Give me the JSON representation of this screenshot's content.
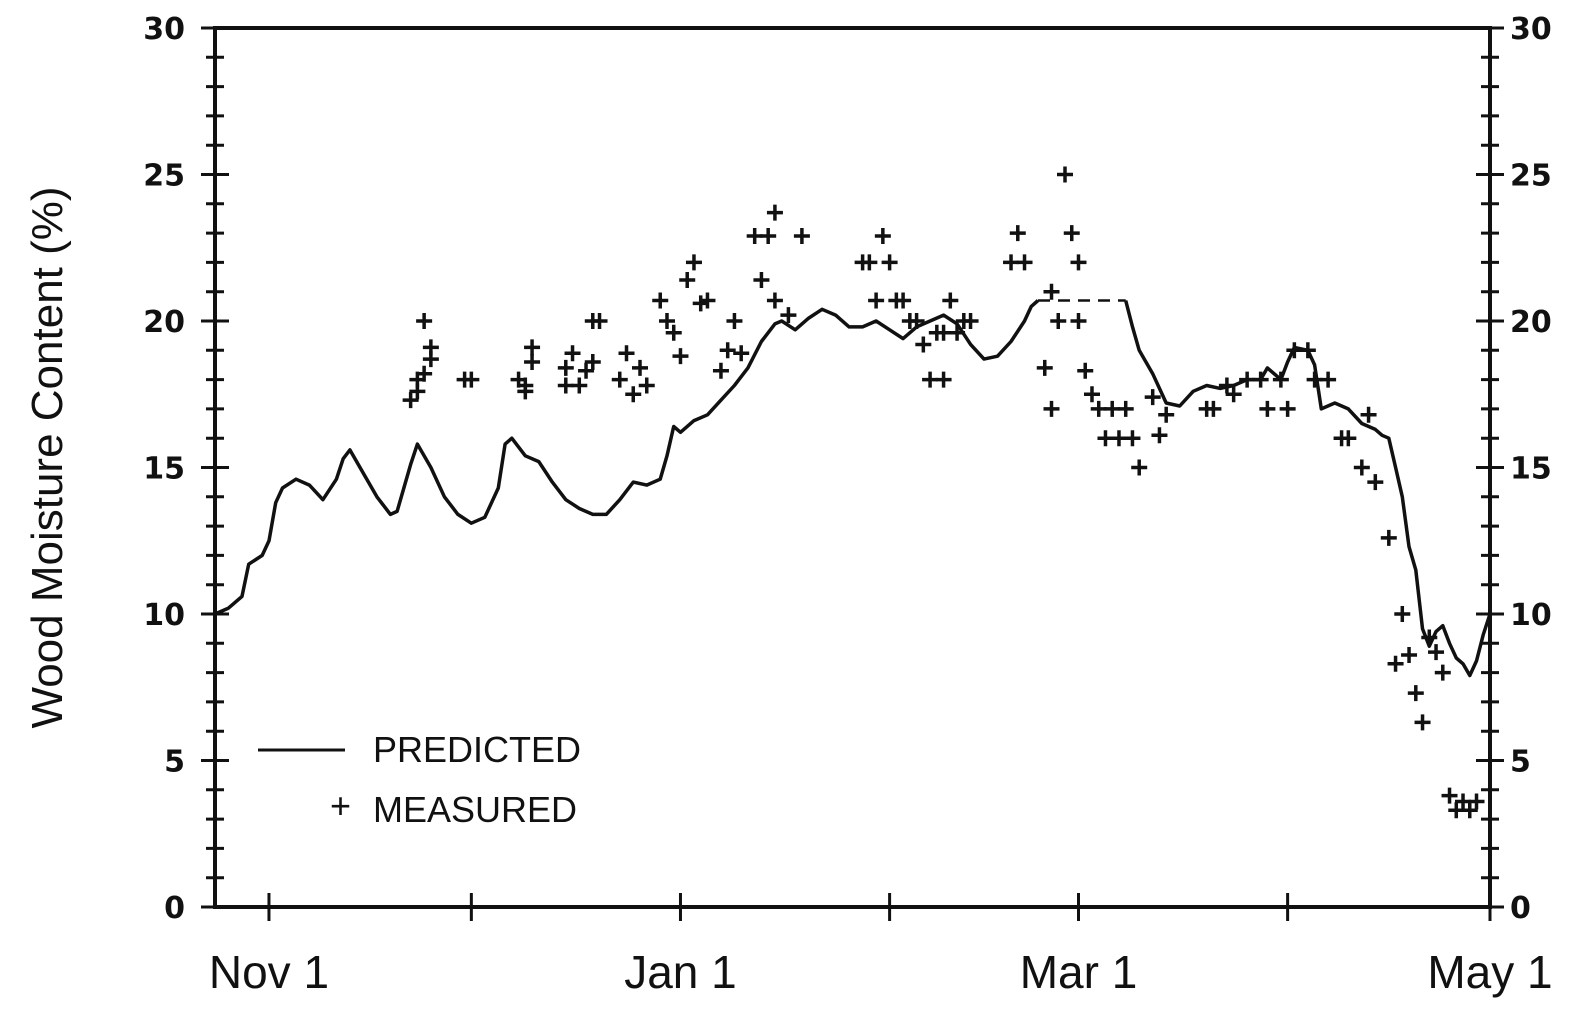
{
  "chart_data": {
    "type": "line",
    "title": "",
    "xlabel": "",
    "ylabel": "Wood Moisture Content (%)",
    "ylim": [
      0,
      30
    ],
    "y_ticks": [
      0,
      5,
      10,
      15,
      20,
      25,
      30
    ],
    "x_tick_labels": [
      "Nov 1",
      "Jan 1",
      "Mar 1",
      "May 1"
    ],
    "x_tick_days": [
      0,
      61,
      120,
      181
    ],
    "xlim_days": [
      -8,
      181
    ],
    "x_unit_note": "",
    "grid": false,
    "legend_position": "bottom-left",
    "legend": {
      "predicted_label": "PREDICTED",
      "measured_label": "MEASURED"
    },
    "series": [
      {
        "name": "PREDICTED",
        "style": "solid-line",
        "points": [
          [
            -8,
            10.0
          ],
          [
            -6,
            10.2
          ],
          [
            -4,
            10.6
          ],
          [
            -3,
            11.7
          ],
          [
            -1,
            12.0
          ],
          [
            0,
            12.5
          ],
          [
            1,
            13.8
          ],
          [
            2,
            14.3
          ],
          [
            4,
            14.6
          ],
          [
            6,
            14.4
          ],
          [
            8,
            13.9
          ],
          [
            10,
            14.6
          ],
          [
            11,
            15.3
          ],
          [
            12,
            15.6
          ],
          [
            14,
            14.8
          ],
          [
            16,
            14.0
          ],
          [
            18,
            13.4
          ],
          [
            19,
            13.5
          ],
          [
            21,
            15.1
          ],
          [
            22,
            15.8
          ],
          [
            24,
            15.0
          ],
          [
            26,
            14.0
          ],
          [
            28,
            13.4
          ],
          [
            30,
            13.1
          ],
          [
            32,
            13.3
          ],
          [
            34,
            14.3
          ],
          [
            35,
            15.8
          ],
          [
            36,
            16.0
          ],
          [
            38,
            15.4
          ],
          [
            40,
            15.2
          ],
          [
            42,
            14.5
          ],
          [
            44,
            13.9
          ],
          [
            46,
            13.6
          ],
          [
            48,
            13.4
          ],
          [
            50,
            13.4
          ],
          [
            52,
            13.9
          ],
          [
            54,
            14.5
          ],
          [
            56,
            14.4
          ],
          [
            58,
            14.6
          ],
          [
            59,
            15.4
          ],
          [
            60,
            16.4
          ],
          [
            61,
            16.2
          ],
          [
            63,
            16.6
          ],
          [
            65,
            16.8
          ],
          [
            67,
            17.3
          ],
          [
            69,
            17.8
          ],
          [
            71,
            18.4
          ],
          [
            73,
            19.3
          ],
          [
            75,
            19.9
          ],
          [
            76,
            20.0
          ],
          [
            78,
            19.7
          ],
          [
            80,
            20.1
          ],
          [
            82,
            20.4
          ],
          [
            84,
            20.2
          ],
          [
            86,
            19.8
          ],
          [
            88,
            19.8
          ],
          [
            90,
            20.0
          ],
          [
            92,
            19.7
          ],
          [
            94,
            19.4
          ],
          [
            96,
            19.8
          ],
          [
            98,
            20.0
          ],
          [
            100,
            20.2
          ],
          [
            102,
            19.9
          ],
          [
            104,
            19.2
          ],
          [
            106,
            18.7
          ],
          [
            108,
            18.8
          ],
          [
            110,
            19.3
          ],
          [
            112,
            20.0
          ],
          [
            113,
            20.5
          ],
          [
            114,
            20.7
          ]
        ]
      },
      {
        "name": "",
        "style": "dashed-line",
        "points": [
          [
            114,
            20.7
          ],
          [
            127,
            20.7
          ]
        ]
      },
      {
        "name": "",
        "style": "solid-line",
        "points": [
          [
            127,
            20.7
          ],
          [
            128,
            19.8
          ],
          [
            129,
            19.0
          ],
          [
            131,
            18.2
          ],
          [
            133,
            17.2
          ],
          [
            135,
            17.1
          ],
          [
            137,
            17.6
          ],
          [
            139,
            17.8
          ],
          [
            141,
            17.7
          ],
          [
            143,
            17.8
          ],
          [
            145,
            18.0
          ],
          [
            147,
            18.0
          ],
          [
            148,
            18.4
          ],
          [
            150,
            18.0
          ],
          [
            151,
            18.6
          ],
          [
            152,
            19.1
          ],
          [
            154,
            19.0
          ],
          [
            155,
            18.5
          ],
          [
            156,
            17.0
          ],
          [
            158,
            17.2
          ],
          [
            160,
            17.0
          ],
          [
            162,
            16.5
          ],
          [
            164,
            16.3
          ],
          [
            165,
            16.1
          ],
          [
            166,
            16.0
          ],
          [
            167,
            15.0
          ],
          [
            168,
            14.0
          ],
          [
            169,
            12.3
          ],
          [
            170,
            11.5
          ],
          [
            171,
            9.5
          ],
          [
            172,
            8.9
          ],
          [
            173,
            9.4
          ],
          [
            174,
            9.6
          ],
          [
            175,
            9.0
          ],
          [
            176,
            8.5
          ],
          [
            177,
            8.3
          ],
          [
            178,
            7.9
          ],
          [
            179,
            8.4
          ],
          [
            180,
            9.3
          ],
          [
            181,
            10.0
          ]
        ]
      },
      {
        "name": "MEASURED",
        "style": "plus-markers",
        "points": [
          [
            21,
            17.3
          ],
          [
            22,
            17.6
          ],
          [
            22,
            18.0
          ],
          [
            23,
            18.2
          ],
          [
            23,
            20.0
          ],
          [
            24,
            18.7
          ],
          [
            24,
            19.1
          ],
          [
            29,
            18.0
          ],
          [
            30,
            18.0
          ],
          [
            37,
            18.0
          ],
          [
            38,
            17.8
          ],
          [
            38,
            17.6
          ],
          [
            39,
            18.6
          ],
          [
            39,
            19.1
          ],
          [
            44,
            18.4
          ],
          [
            44,
            17.8
          ],
          [
            45,
            18.9
          ],
          [
            46,
            17.8
          ],
          [
            47,
            18.3
          ],
          [
            48,
            18.6
          ],
          [
            48,
            20.0
          ],
          [
            49,
            20.0
          ],
          [
            52,
            18.0
          ],
          [
            53,
            18.9
          ],
          [
            54,
            17.5
          ],
          [
            55,
            18.4
          ],
          [
            56,
            17.8
          ],
          [
            58,
            20.7
          ],
          [
            59,
            20.0
          ],
          [
            60,
            19.6
          ],
          [
            61,
            18.8
          ],
          [
            62,
            21.4
          ],
          [
            63,
            22.0
          ],
          [
            64,
            20.6
          ],
          [
            65,
            20.7
          ],
          [
            67,
            18.3
          ],
          [
            68,
            19.0
          ],
          [
            69,
            20.0
          ],
          [
            70,
            18.9
          ],
          [
            72,
            22.9
          ],
          [
            73,
            21.4
          ],
          [
            74,
            22.9
          ],
          [
            75,
            23.7
          ],
          [
            75,
            20.7
          ],
          [
            77,
            20.2
          ],
          [
            79,
            22.9
          ],
          [
            88,
            22.0
          ],
          [
            89,
            22.0
          ],
          [
            90,
            20.7
          ],
          [
            91,
            22.9
          ],
          [
            92,
            22.0
          ],
          [
            93,
            20.7
          ],
          [
            94,
            20.7
          ],
          [
            95,
            20.0
          ],
          [
            96,
            20.0
          ],
          [
            97,
            19.2
          ],
          [
            98,
            18.0
          ],
          [
            99,
            19.6
          ],
          [
            100,
            18.0
          ],
          [
            100,
            19.6
          ],
          [
            101,
            20.7
          ],
          [
            102,
            19.6
          ],
          [
            103,
            20.0
          ],
          [
            104,
            20.0
          ],
          [
            110,
            22.0
          ],
          [
            111,
            23.0
          ],
          [
            112,
            22.0
          ],
          [
            115,
            18.4
          ],
          [
            116,
            17.0
          ],
          [
            116,
            21.0
          ],
          [
            117,
            20.0
          ],
          [
            118,
            25.0
          ],
          [
            119,
            23.0
          ],
          [
            120,
            22.0
          ],
          [
            120,
            20.0
          ],
          [
            121,
            18.3
          ],
          [
            122,
            17.5
          ],
          [
            123,
            17.0
          ],
          [
            124,
            16.0
          ],
          [
            125,
            17.0
          ],
          [
            126,
            16.0
          ],
          [
            127,
            17.0
          ],
          [
            128,
            16.0
          ],
          [
            129,
            15.0
          ],
          [
            131,
            17.4
          ],
          [
            132,
            16.1
          ],
          [
            133,
            16.8
          ],
          [
            139,
            17.0
          ],
          [
            140,
            17.0
          ],
          [
            142,
            17.8
          ],
          [
            143,
            17.5
          ],
          [
            145,
            18.0
          ],
          [
            147,
            18.0
          ],
          [
            148,
            17.0
          ],
          [
            150,
            18.0
          ],
          [
            151,
            17.0
          ],
          [
            152,
            19.0
          ],
          [
            154,
            19.0
          ],
          [
            155,
            18.0
          ],
          [
            157,
            18.0
          ],
          [
            159,
            16.0
          ],
          [
            160,
            16.0
          ],
          [
            162,
            15.0
          ],
          [
            163,
            16.8
          ],
          [
            164,
            14.5
          ],
          [
            166,
            12.6
          ],
          [
            167,
            8.3
          ],
          [
            168,
            10.0
          ],
          [
            169,
            8.6
          ],
          [
            170,
            7.3
          ],
          [
            171,
            6.3
          ],
          [
            172,
            9.2
          ],
          [
            173,
            8.7
          ],
          [
            174,
            8.0
          ],
          [
            175,
            3.8
          ],
          [
            176,
            3.3
          ],
          [
            177,
            3.6
          ],
          [
            178,
            3.3
          ],
          [
            179,
            3.6
          ]
        ]
      }
    ]
  }
}
